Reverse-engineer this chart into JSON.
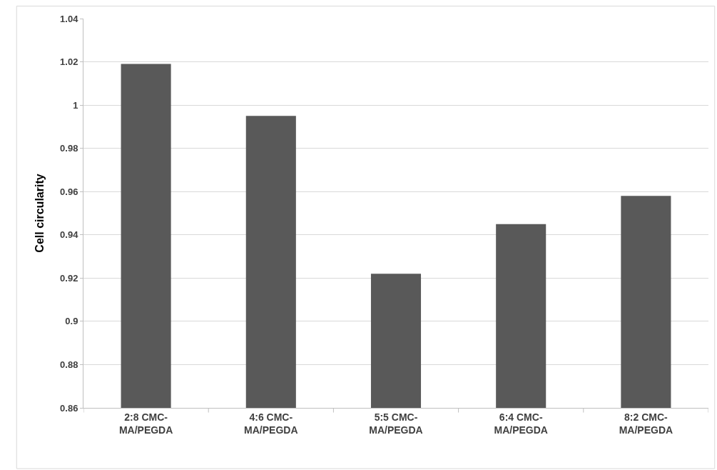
{
  "chart_data": {
    "type": "bar",
    "ylabel": "Cell circularity",
    "categories": [
      "2:8 CMC-MA/PEGDA",
      "4:6 CMC-MA/PEGDA",
      "5:5 CMC-MA/PEGDA",
      "6:4 CMC-MA/PEGDA",
      "8:2 CMC-MA/PEGDA"
    ],
    "values": [
      1.019,
      0.995,
      0.922,
      0.945,
      0.958
    ],
    "color": "#595959",
    "ylim": [
      0.86,
      1.04
    ],
    "yticks": [
      0.86,
      0.88,
      0.9,
      0.92,
      0.94,
      0.96,
      0.98,
      1,
      1.02,
      1.04
    ],
    "grid": "y"
  }
}
